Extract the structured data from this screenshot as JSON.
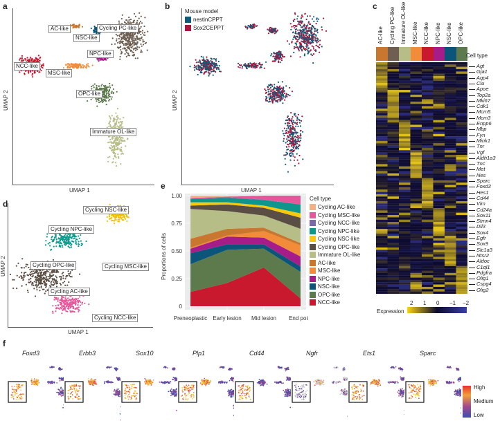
{
  "panel_letters": {
    "a": "a",
    "b": "b",
    "c": "c",
    "d": "d",
    "e": "e",
    "f": "f"
  },
  "umap_a": {
    "xlabel": "UMAP 1",
    "ylabel": "UMAP 2",
    "clusters": [
      {
        "label": "Cycling PC-like",
        "color": "#6e5f52"
      },
      {
        "label": "NSC-like",
        "color": "#0c557a"
      },
      {
        "label": "AC-like",
        "color": "#c9772f"
      },
      {
        "label": "NPC-like",
        "color": "#a61d8a"
      },
      {
        "label": "MSC-like",
        "color": "#f28c38"
      },
      {
        "label": "NCC-like",
        "color": "#c8192f"
      },
      {
        "label": "OPC-like",
        "color": "#5d7a4d"
      },
      {
        "label": "Immature OL-like",
        "color": "#b7bd86"
      }
    ]
  },
  "umap_b": {
    "xlabel": "UMAP 1",
    "ylabel": "UMAP 2",
    "legend_title": "Mouse model",
    "legend": [
      {
        "label": "nestinCPPT",
        "color": "#11597a"
      },
      {
        "label": "Sox2CEPPT",
        "color": "#a8173c"
      }
    ]
  },
  "heatmap": {
    "columns": [
      {
        "label": "AC-like",
        "color": "#c9772f"
      },
      {
        "label": "Cycling PC-like",
        "color": "#6e5f52"
      },
      {
        "label": "Immature OL-like",
        "color": "#b7bd86"
      },
      {
        "label": "MSC-like",
        "color": "#f28c38"
      },
      {
        "label": "NCC-like",
        "color": "#c8192f"
      },
      {
        "label": "NPC-like",
        "color": "#a61d8a"
      },
      {
        "label": "NSC-like",
        "color": "#0c557a"
      },
      {
        "label": "OPC-like",
        "color": "#5d7a4d"
      }
    ],
    "cell_type_label": "Cell type",
    "genes": [
      "Agt",
      "Gja1",
      "Aqp4",
      "Clu",
      "Apoe",
      "Top2a",
      "Mki67",
      "Cdk1",
      "Mcm5",
      "Mcm3",
      "Enpp6",
      "Mbp",
      "Fyn",
      "Mink1",
      "Tnr",
      "Vgf",
      "Aldh1a3",
      "Tnc",
      "Met",
      "Nes",
      "Sparc",
      "Foxd3",
      "Hes1",
      "Cd44",
      "Vim",
      "Cd24a",
      "Sox11",
      "Stmn4",
      "Dll3",
      "Sox4",
      "Egfr",
      "Sox9",
      "Slc1a3",
      "Ntsr2",
      "Aldoc",
      "C1ql1",
      "Pdgfra",
      "Olig1",
      "Cspg4",
      "Olig2"
    ],
    "expression_label": "Expression",
    "scale_ticks": [
      "2",
      "1",
      "0",
      "−1",
      "−2"
    ],
    "scale_colors": {
      "high": "#f7d417",
      "mid": "#0d0a2e",
      "low": "#3a3fa8"
    }
  },
  "umap_d": {
    "xlabel": "UMAP 1",
    "ylabel": "UMAP 2",
    "clusters": [
      {
        "label": "Cycling NSC-like",
        "color": "#f2c200"
      },
      {
        "label": "Cycling NPC-like",
        "color": "#109a8f"
      },
      {
        "label": "Cycling OPC-like",
        "color": "#5a4d43"
      },
      {
        "label": "Cycling MSC-like",
        "color": "#e5579a"
      },
      {
        "label": "Cycling AC-like",
        "color": "#f4b183"
      },
      {
        "label": "Cycling NCC-like",
        "color": "#6b5aa8"
      }
    ]
  },
  "chart_data": {
    "type": "area",
    "stacked": true,
    "title": "",
    "xlabel": "",
    "ylabel": "Proportions of cells",
    "ylim": [
      0,
      1
    ],
    "yticks": [
      "0",
      "0.25",
      "0.50",
      "0.75",
      "1.00"
    ],
    "ytick_values": [
      0,
      0.25,
      0.5,
      0.75,
      1.0
    ],
    "categories": [
      "Preneoplastic",
      "Early lesion",
      "Mid lesion",
      "End point"
    ],
    "legend_title": "Cell type",
    "legend_position": "right",
    "grid": true,
    "series": [
      {
        "name": "Cycling AC-like",
        "color": "#f4b183",
        "values": [
          0.02,
          0.01,
          0.0,
          0.0
        ]
      },
      {
        "name": "Cycling MSC-like",
        "color": "#e5579a",
        "values": [
          0.01,
          0.005,
          0.035,
          0.08
        ]
      },
      {
        "name": "Cycling NCC-like",
        "color": "#7b68a6",
        "values": [
          0.0,
          0.005,
          0.005,
          0.0
        ]
      },
      {
        "name": "Cycling NPC-like",
        "color": "#0f968c",
        "values": [
          0.03,
          0.04,
          0.05,
          0.08
        ]
      },
      {
        "name": "Cycling NSC-like",
        "color": "#f6c90e",
        "values": [
          0.03,
          0.02,
          0.02,
          0.04
        ]
      },
      {
        "name": "Cycling OPC-like",
        "color": "#5a4d43",
        "values": [
          0.03,
          0.06,
          0.07,
          0.1
        ]
      },
      {
        "name": "Immature OL-like",
        "color": "#b7bd86",
        "values": [
          0.27,
          0.16,
          0.11,
          0.13
        ]
      },
      {
        "name": "AC-like",
        "color": "#c9772f",
        "values": [
          0.08,
          0.06,
          0.03,
          0.02
        ]
      },
      {
        "name": "MSC-like",
        "color": "#f28c38",
        "values": [
          0.01,
          0.01,
          0.06,
          0.1
        ]
      },
      {
        "name": "NPC-like",
        "color": "#a61d8a",
        "values": [
          0.04,
          0.07,
          0.06,
          0.09
        ]
      },
      {
        "name": "NSC-like",
        "color": "#0c557a",
        "values": [
          0.1,
          0.05,
          0.04,
          0.05
        ]
      },
      {
        "name": "OPC-like",
        "color": "#5d7a4d",
        "values": [
          0.25,
          0.3,
          0.17,
          0.24
        ]
      },
      {
        "name": "NCC-like",
        "color": "#c8192f",
        "values": [
          0.13,
          0.21,
          0.35,
          0.07
        ]
      }
    ]
  },
  "feature_plots": {
    "genes": [
      "Foxd3",
      "Erbb3",
      "Sox10",
      "Plp1",
      "Cd44",
      "Ngfr",
      "Ets1",
      "Sparc"
    ],
    "legend": [
      "High",
      "Medium",
      "Low"
    ]
  }
}
